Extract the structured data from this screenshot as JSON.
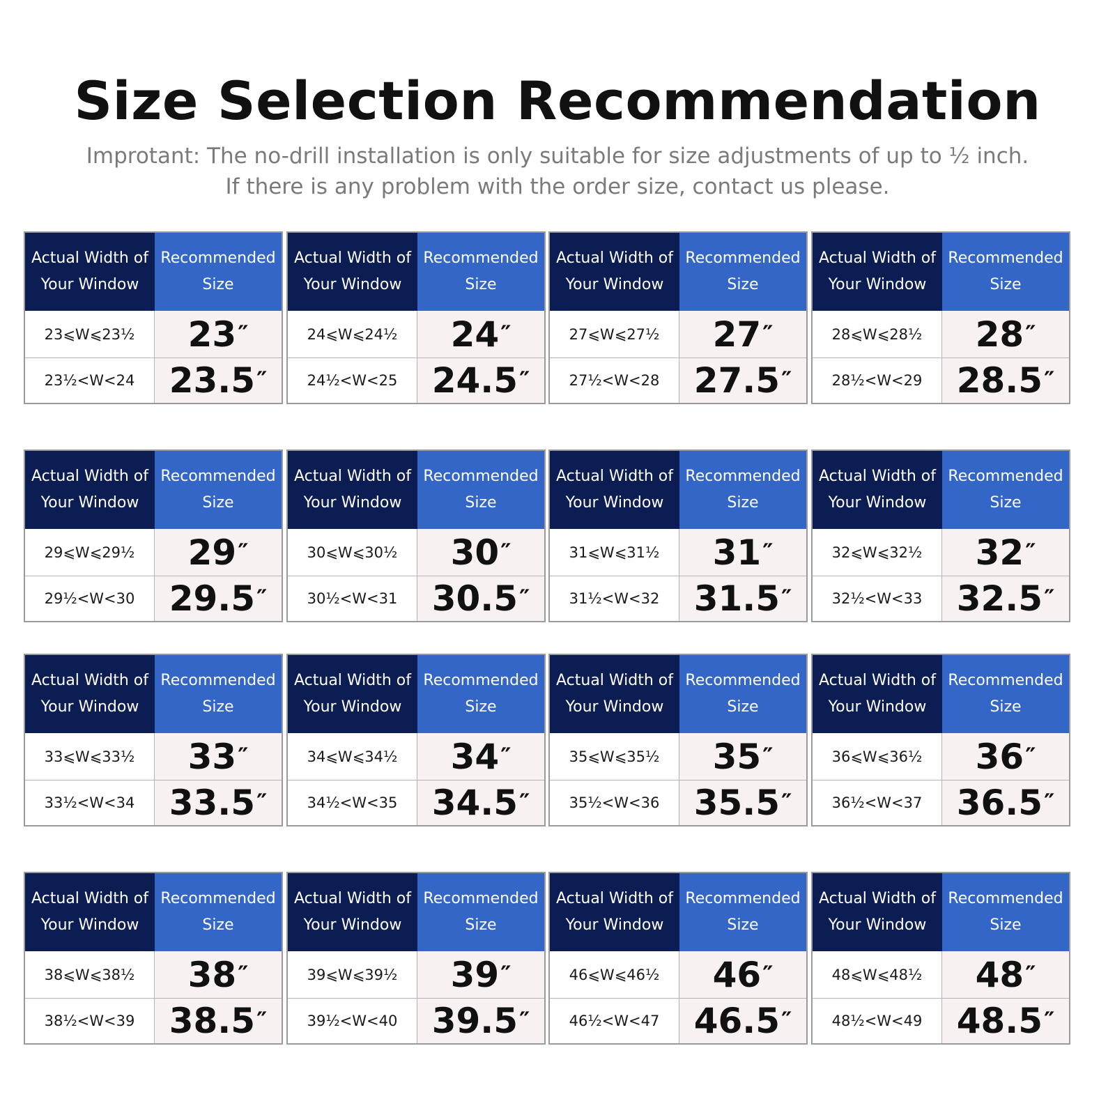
{
  "title": "Size Selection Recommendation",
  "subtitle_line1": "Improtant: The no-drill installation is only suitable for size adjustments of up to ½ inch.",
  "subtitle_line2": "If there is any problem with the order size, contact us please.",
  "header": {
    "col_left_line1": "Actual Width of",
    "col_left_line2": "Your Window",
    "col_right_line1": "Recommended",
    "col_right_line2": "Size"
  },
  "inch_mark": "″",
  "colors": {
    "header_dark": "#0b1d52",
    "header_blue": "#3366c7",
    "size_bg": "#f8f1f1"
  },
  "tables": [
    {
      "rows": [
        {
          "range": "23⩽W⩽23½",
          "size": "23"
        },
        {
          "range": "23½<W<24",
          "size": "23.5"
        }
      ]
    },
    {
      "rows": [
        {
          "range": "24⩽W⩽24½",
          "size": "24"
        },
        {
          "range": "24½<W<25",
          "size": "24.5"
        }
      ]
    },
    {
      "rows": [
        {
          "range": "27⩽W⩽27½",
          "size": "27"
        },
        {
          "range": "27½<W<28",
          "size": "27.5"
        }
      ]
    },
    {
      "rows": [
        {
          "range": "28⩽W⩽28½",
          "size": "28"
        },
        {
          "range": "28½<W<29",
          "size": "28.5"
        }
      ]
    },
    {
      "rows": [
        {
          "range": "29⩽W⩽29½",
          "size": "29"
        },
        {
          "range": "29½<W<30",
          "size": "29.5"
        }
      ]
    },
    {
      "rows": [
        {
          "range": "30⩽W⩽30½",
          "size": "30"
        },
        {
          "range": "30½<W<31",
          "size": "30.5"
        }
      ]
    },
    {
      "rows": [
        {
          "range": "31⩽W⩽31½",
          "size": "31"
        },
        {
          "range": "31½<W<32",
          "size": "31.5"
        }
      ]
    },
    {
      "rows": [
        {
          "range": "32⩽W⩽32½",
          "size": "32"
        },
        {
          "range": "32½<W<33",
          "size": "32.5"
        }
      ]
    },
    {
      "rows": [
        {
          "range": "33⩽W⩽33½",
          "size": "33"
        },
        {
          "range": "33½<W<34",
          "size": "33.5"
        }
      ]
    },
    {
      "rows": [
        {
          "range": "34⩽W⩽34½",
          "size": "34"
        },
        {
          "range": "34½<W<35",
          "size": "34.5"
        }
      ]
    },
    {
      "rows": [
        {
          "range": "35⩽W⩽35½",
          "size": "35"
        },
        {
          "range": "35½<W<36",
          "size": "35.5"
        }
      ]
    },
    {
      "rows": [
        {
          "range": "36⩽W⩽36½",
          "size": "36"
        },
        {
          "range": "36½<W<37",
          "size": "36.5"
        }
      ]
    },
    {
      "rows": [
        {
          "range": "38⩽W⩽38½",
          "size": "38"
        },
        {
          "range": "38½<W<39",
          "size": "38.5"
        }
      ]
    },
    {
      "rows": [
        {
          "range": "39⩽W⩽39½",
          "size": "39"
        },
        {
          "range": "39½<W<40",
          "size": "39.5"
        }
      ]
    },
    {
      "rows": [
        {
          "range": "46⩽W⩽46½",
          "size": "46"
        },
        {
          "range": "46½<W<47",
          "size": "46.5"
        }
      ]
    },
    {
      "rows": [
        {
          "range": "48⩽W⩽48½",
          "size": "48"
        },
        {
          "range": "48½<W<49",
          "size": "48.5"
        }
      ]
    }
  ]
}
